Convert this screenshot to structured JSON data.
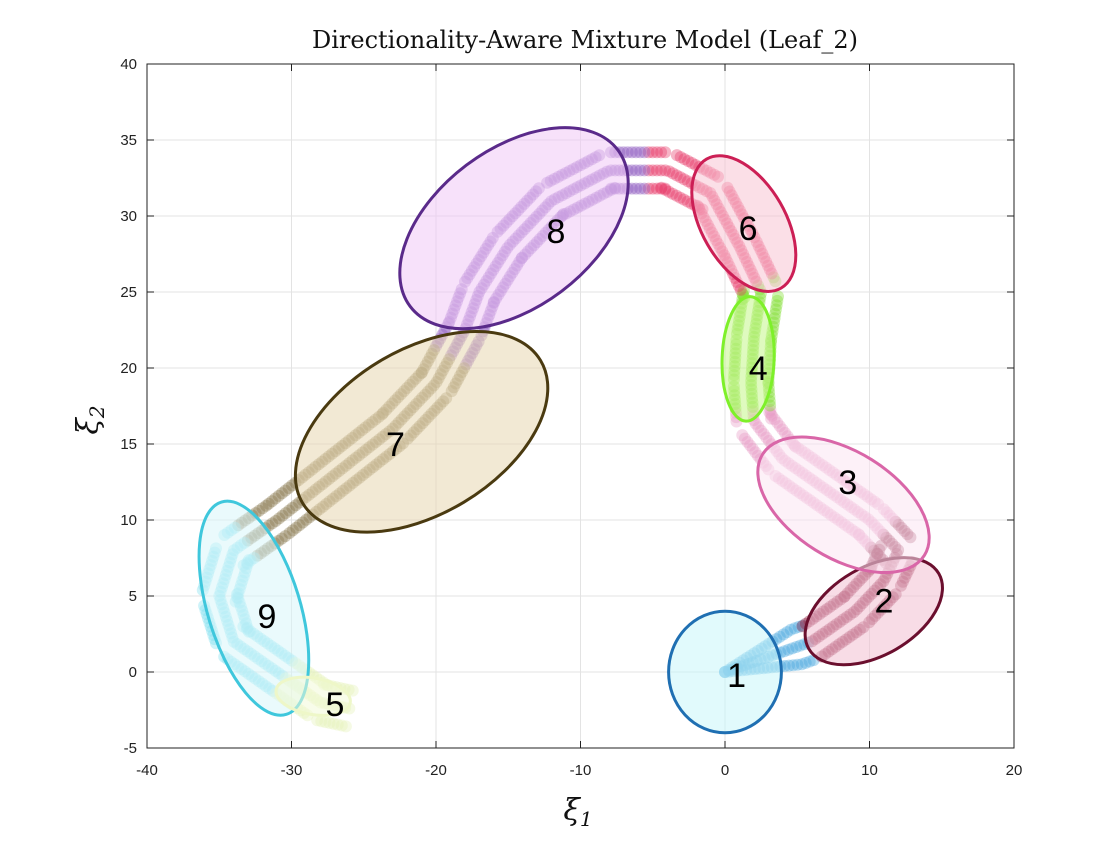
{
  "chart_data": {
    "type": "scatter",
    "title": "Directionality-Aware Mixture Model (Leaf_2)",
    "xlabel": {
      "symbol": "ξ",
      "subscript": "1"
    },
    "ylabel": {
      "symbol": "ξ",
      "subscript": "2"
    },
    "xlim": [
      -40,
      20
    ],
    "ylim": [
      -5,
      40
    ],
    "xticks": [
      -40,
      -30,
      -20,
      -10,
      0,
      10,
      20
    ],
    "yticks": [
      -5,
      0,
      5,
      10,
      15,
      20,
      25,
      30,
      35,
      40
    ],
    "grid": true,
    "clusters": [
      {
        "label": "1",
        "center": [
          0,
          0
        ],
        "semi_axes": [
          3.9,
          4.0
        ],
        "angle_deg": 0,
        "edge_color": "#1f6fb2",
        "fill_color": "#c8f5fa",
        "point_color": "#4aa8e0",
        "label_pos": [
          0.8,
          -0.2
        ]
      },
      {
        "label": "2",
        "center": [
          10.3,
          4.0
        ],
        "semi_axes": [
          5.2,
          2.9
        ],
        "angle_deg": 30,
        "edge_color": "#6b0f2e",
        "fill_color": "#f2c0d2",
        "point_color": "#8b1a3c",
        "label_pos": [
          11.0,
          4.7
        ]
      },
      {
        "label": "3",
        "center": [
          8.2,
          11.0
        ],
        "semi_axes": [
          6.6,
          3.5
        ],
        "angle_deg": -32,
        "edge_color": "#d966a8",
        "fill_color": "#fbe6f2",
        "point_color": "#e89ac5",
        "label_pos": [
          8.5,
          12.5
        ]
      },
      {
        "label": "4",
        "center": [
          1.6,
          20.6
        ],
        "semi_axes": [
          1.8,
          4.1
        ],
        "angle_deg": -2,
        "edge_color": "#7ef02a",
        "fill_color": "#c4f58a",
        "point_color": "#7fdc2e",
        "label_pos": [
          2.3,
          20.0
        ]
      },
      {
        "label": "6",
        "center": [
          1.3,
          29.5
        ],
        "semi_axes": [
          2.9,
          4.9
        ],
        "angle_deg": 30,
        "edge_color": "#cc1f55",
        "fill_color": "#f7c4d4",
        "point_color": "#e83a6a",
        "label_pos": [
          1.6,
          29.2
        ]
      },
      {
        "label": "7",
        "center": [
          -21.0,
          15.8
        ],
        "semi_axes": [
          9.6,
          5.4
        ],
        "angle_deg": 31,
        "edge_color": "#4a3a10",
        "fill_color": "#e8d7b0",
        "point_color": "#8a7a50",
        "label_pos": [
          -22.8,
          15.0
        ]
      },
      {
        "label": "8",
        "center": [
          -14.6,
          29.2
        ],
        "semi_axes": [
          9.0,
          5.2
        ],
        "angle_deg": 37,
        "edge_color": "#5a2a8a",
        "fill_color": "#f0c8f5",
        "point_color": "#8f5abf",
        "label_pos": [
          -11.7,
          29.0
        ]
      },
      {
        "label": "9",
        "center": [
          -32.6,
          4.2
        ],
        "semi_axes": [
          3.2,
          7.3
        ],
        "angle_deg": 17,
        "edge_color": "#3fc7dc",
        "fill_color": "#d8f6fa",
        "point_color": "#7fe0f0",
        "label_pos": [
          -31.7,
          3.7
        ]
      },
      {
        "label": "5",
        "center": [
          -28.5,
          -1.6
        ],
        "semi_axes": [
          2.6,
          1.2
        ],
        "angle_deg": -10,
        "edge_color": "#eef7c8",
        "fill_color": "#f2f9d8",
        "point_color": "#e6f3b8",
        "label_pos": [
          -27.0,
          -2.1
        ]
      }
    ],
    "trajectories": {
      "count": 3,
      "point_color_segments": [
        {
          "cluster": "1",
          "range": [
            0.0,
            0.06
          ]
        },
        {
          "cluster": "2",
          "range": [
            0.06,
            0.16
          ]
        },
        {
          "cluster": "3",
          "range": [
            0.16,
            0.28
          ]
        },
        {
          "cluster": "4",
          "range": [
            0.28,
            0.36
          ]
        },
        {
          "cluster": "6",
          "range": [
            0.36,
            0.47
          ]
        },
        {
          "cluster": "8",
          "range": [
            0.47,
            0.66
          ]
        },
        {
          "cluster": "7",
          "range": [
            0.66,
            0.84
          ]
        },
        {
          "cluster": "9",
          "range": [
            0.84,
            0.95
          ]
        },
        {
          "cluster": "5",
          "range": [
            0.95,
            1.0
          ]
        }
      ],
      "path": [
        [
          0,
          0
        ],
        [
          3,
          1
        ],
        [
          6,
          2
        ],
        [
          9,
          4
        ],
        [
          11,
          6
        ],
        [
          12,
          8
        ],
        [
          10,
          10
        ],
        [
          7,
          12
        ],
        [
          4,
          14
        ],
        [
          2,
          16.5
        ],
        [
          1.8,
          19
        ],
        [
          2,
          22
        ],
        [
          2.5,
          25
        ],
        [
          1,
          28
        ],
        [
          -1,
          31.5
        ],
        [
          -4,
          33
        ],
        [
          -8,
          33
        ],
        [
          -12,
          31
        ],
        [
          -15,
          28
        ],
        [
          -17,
          25
        ],
        [
          -18,
          22.5
        ],
        [
          -20,
          19
        ],
        [
          -23,
          16
        ],
        [
          -27,
          13
        ],
        [
          -31,
          10
        ],
        [
          -34,
          8
        ],
        [
          -35,
          5
        ],
        [
          -34,
          2
        ],
        [
          -31,
          0
        ],
        [
          -28,
          -2
        ],
        [
          -26,
          -2.4
        ]
      ],
      "offsets": [
        -1.2,
        0,
        1.2
      ]
    }
  }
}
